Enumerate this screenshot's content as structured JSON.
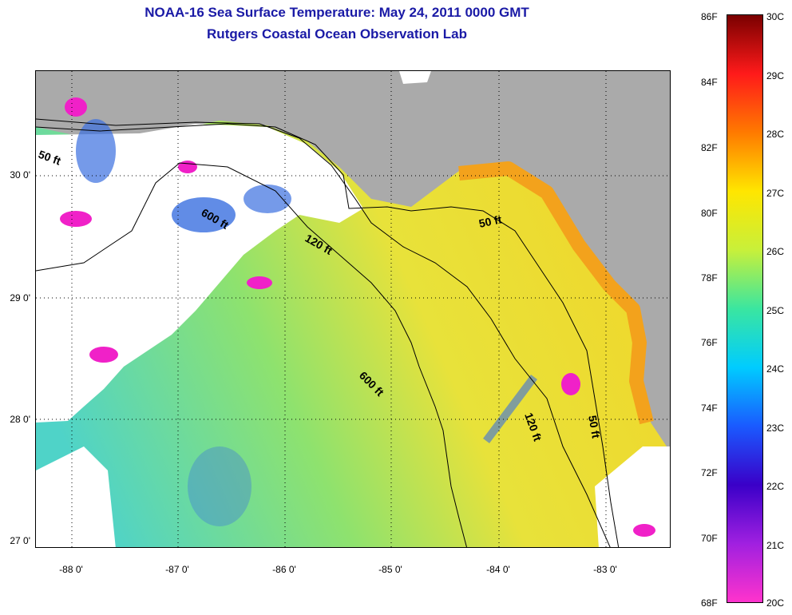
{
  "header": {
    "title_line1": "NOAA-16 Sea Surface Temperature:  May 24, 2011 0000 GMT",
    "title_line2": "Rutgers Coastal Ocean Observation Lab"
  },
  "map": {
    "lat_ticks": [
      "30 0'",
      "29 0'",
      "28 0'",
      "27 0'"
    ],
    "lon_ticks": [
      "-88 0'",
      "-87 0'",
      "-86 0'",
      "-85 0'",
      "-84 0'",
      "-83 0'"
    ],
    "contour_labels": [
      "50 ft",
      "600 ft",
      "120 ft",
      "50 ft",
      "600 ft",
      "120 ft",
      "50 ft"
    ],
    "colors": {
      "land": "#aaaaaa",
      "cloud": "#ffffff",
      "water_cool": "#4fd3c8",
      "water_warm": "#e8e23a",
      "coast_warm": "#f3a21c",
      "cold_patch": "#3a6fe0",
      "magenta_patch": "#f021c8"
    }
  },
  "colorbar": {
    "f_labels": [
      "86F",
      "84F",
      "82F",
      "80F",
      "78F",
      "76F",
      "74F",
      "72F",
      "70F",
      "68F"
    ],
    "c_labels": [
      "30C",
      "29C",
      "28C",
      "27C",
      "26C",
      "25C",
      "24C",
      "23C",
      "22C",
      "21C",
      "20C"
    ],
    "stops": [
      "#7a0000",
      "#ff1a1a",
      "#ff7a00",
      "#ffe600",
      "#c8f03a",
      "#3ae6a0",
      "#00ccff",
      "#1a5aff",
      "#3a00c8",
      "#a020e0",
      "#ff33cc"
    ]
  }
}
